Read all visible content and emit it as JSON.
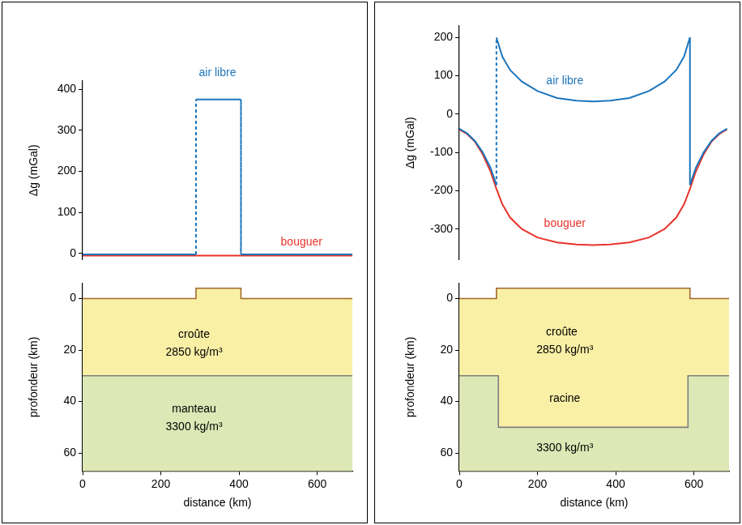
{
  "chart_data": [
    {
      "type": "line",
      "xlim": [
        0,
        690
      ],
      "ylim": [
        -15,
        420
      ],
      "yticks": [
        0,
        100,
        200,
        300,
        400
      ],
      "y_label": "Δg (mGal)",
      "tick_labels": "y",
      "grid": false,
      "series": [
        {
          "name": "air libre",
          "color": "#1c75bc",
          "x": [
            0,
            290,
            290,
            405,
            405,
            690
          ],
          "values": [
            -2,
            -2,
            375,
            375,
            -2,
            -2
          ],
          "label_position": [
            345,
            440
          ]
        },
        {
          "name": "bouguer",
          "color": "#e8332a",
          "x": [
            0,
            690
          ],
          "values": [
            -5,
            -5
          ],
          "label_position": [
            560,
            28
          ]
        }
      ]
    },
    {
      "type": "section",
      "xlim": [
        0,
        690
      ],
      "ylim": [
        67,
        -6
      ],
      "xticks": [
        0,
        200,
        400,
        600
      ],
      "yticks": [
        0,
        20,
        40,
        60
      ],
      "x_label": "distance (km)",
      "y_label": "profondeur (km)",
      "grid": false,
      "series": [
        {
          "color": "#a0692b",
          "x": [
            0,
            290,
            290,
            405,
            405,
            690
          ],
          "values": [
            0,
            0,
            -4,
            -4,
            0,
            0
          ]
        },
        {
          "color": "#7f7f7f",
          "x": [
            0,
            690
          ],
          "values": [
            30,
            30
          ]
        }
      ],
      "annotations": [
        {
          "text": "croûte",
          "x": 285,
          "y": 14
        },
        {
          "text": "2850 kg/m³",
          "x": 285,
          "y": 21
        },
        {
          "text": "manteau",
          "x": 285,
          "y": 43
        },
        {
          "text": "3300 kg/m³",
          "x": 285,
          "y": 50
        }
      ]
    },
    {
      "type": "line",
      "xlim": [
        0,
        690
      ],
      "ylim": [
        -380,
        230
      ],
      "yticks": [
        -300,
        -200,
        -100,
        0,
        100,
        200
      ],
      "y_label": "Δg (mGal)",
      "tick_labels": "y",
      "grid": false,
      "series": [
        {
          "name": "air libre",
          "color": "#1c75bc",
          "x": [
            0,
            20,
            40,
            60,
            80,
            95,
            95,
            110,
            130,
            160,
            200,
            250,
            300,
            342,
            385,
            435,
            485,
            525,
            555,
            575,
            590,
            590,
            605,
            625,
            645,
            665,
            685
          ],
          "values": [
            -38,
            -50,
            -70,
            -100,
            -140,
            -185,
            200,
            150,
            115,
            85,
            60,
            42,
            35,
            33,
            35,
            42,
            60,
            85,
            115,
            150,
            200,
            -185,
            -140,
            -100,
            -70,
            -50,
            -38
          ],
          "label_position": [
            270,
            86
          ]
        },
        {
          "name": "bouguer",
          "color": "#e8332a",
          "x": [
            0,
            20,
            40,
            60,
            80,
            95,
            110,
            130,
            160,
            200,
            250,
            300,
            342,
            385,
            435,
            485,
            525,
            555,
            575,
            590,
            605,
            625,
            645,
            665,
            685
          ],
          "values": [
            -40,
            -52,
            -72,
            -105,
            -150,
            -195,
            -235,
            -270,
            -300,
            -322,
            -335,
            -340,
            -342,
            -340,
            -335,
            -322,
            -300,
            -270,
            -235,
            -195,
            -150,
            -105,
            -72,
            -52,
            -40
          ],
          "label_position": [
            270,
            -285
          ]
        }
      ]
    },
    {
      "type": "section",
      "xlim": [
        0,
        690
      ],
      "ylim": [
        67,
        -6
      ],
      "xticks": [
        0,
        200,
        400,
        600
      ],
      "yticks": [
        0,
        20,
        40,
        60
      ],
      "x_label": "distance (km)",
      "y_label": "profondeur (km)",
      "grid": false,
      "series": [
        {
          "color": "#a0692b",
          "x": [
            0,
            95,
            95,
            590,
            590,
            690
          ],
          "values": [
            0,
            0,
            -4,
            -4,
            0,
            0
          ]
        },
        {
          "color": "#7f7f7f",
          "x": [
            0,
            100,
            100,
            585,
            585,
            690
          ],
          "values": [
            30,
            30,
            50,
            50,
            30,
            30
          ]
        }
      ],
      "annotations": [
        {
          "text": "croûte",
          "x": 262,
          "y": 13
        },
        {
          "text": "2850 kg/m³",
          "x": 270,
          "y": 20
        },
        {
          "text": "racine",
          "x": 270,
          "y": 39
        },
        {
          "text": "3300 kg/m³",
          "x": 270,
          "y": 58
        }
      ]
    }
  ]
}
